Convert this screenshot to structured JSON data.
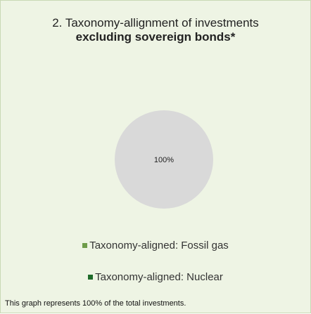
{
  "chart_data": {
    "type": "pie",
    "title": "2. Taxonomy-allignment of investments",
    "subtitle": "excluding sovereign bonds*",
    "slices": [
      {
        "label": "",
        "value": 100,
        "color": "#d9d9d9",
        "data_label": "100%"
      }
    ],
    "legend": [
      {
        "label": "Taxonomy-aligned:  Fossil gas",
        "color": "#6e9c4a"
      },
      {
        "label": "Taxonomy-aligned:  Nuclear",
        "color": "#1f6b2a"
      }
    ],
    "legend_position": "bottom"
  },
  "footnote": "This graph represents  100% of the total investments."
}
